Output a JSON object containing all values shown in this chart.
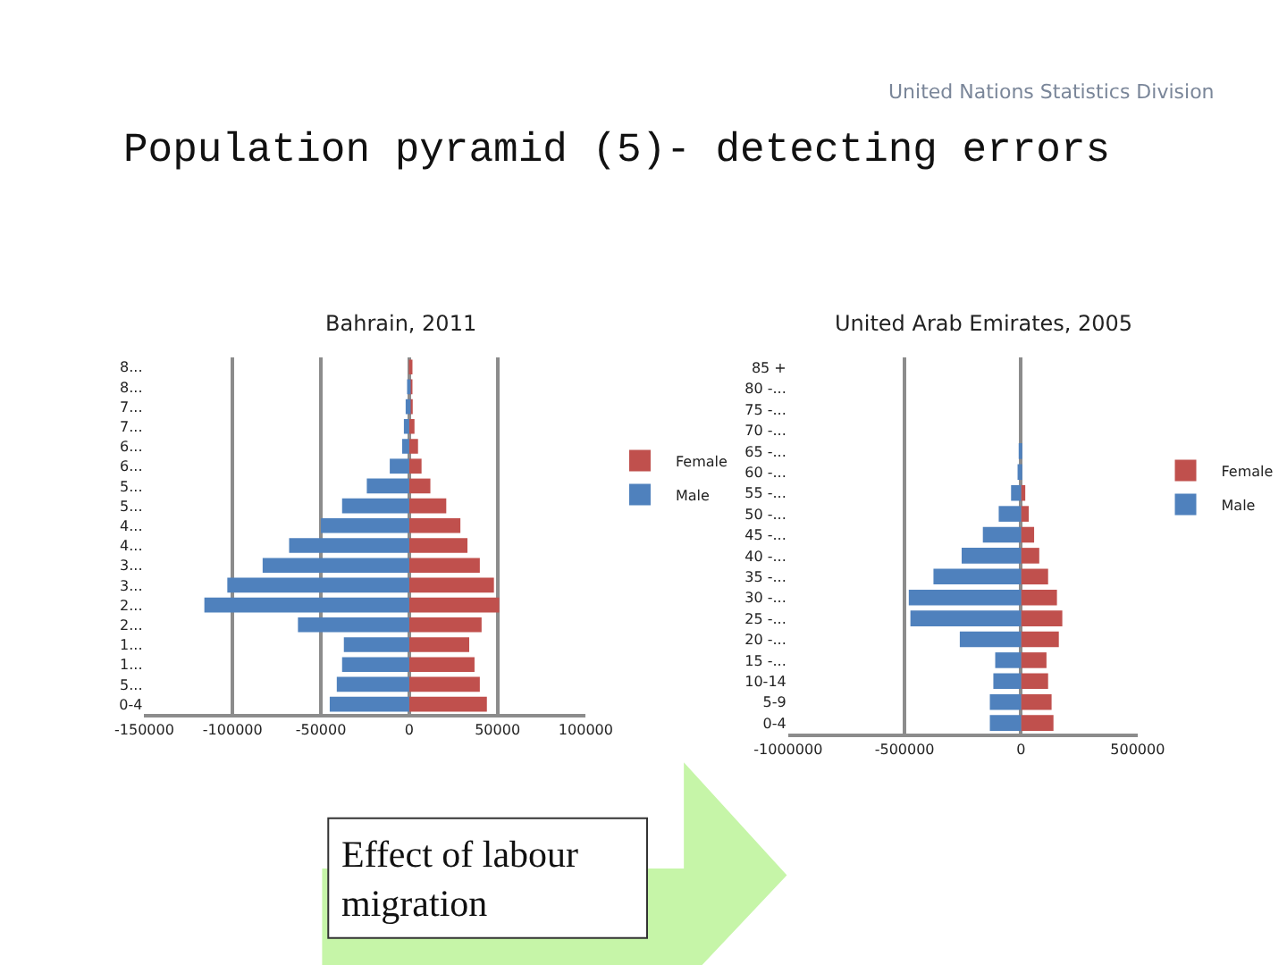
{
  "chart_data": [
    {
      "type": "bar",
      "orientation": "horizontal",
      "title": "Bahrain, 2011",
      "annotations": [
        "Population pyramid (5)- detecting errors",
        "United Nations Statistics Division",
        "Effect of labour\nmigration"
      ],
      "categories": [
        "8...",
        "8...",
        "7...",
        "7...",
        "6...",
        "6...",
        "5...",
        "5...",
        "4...",
        "4...",
        "3...",
        "3...",
        "2...",
        "2...",
        "1...",
        "1...",
        "5...",
        "0-4"
      ],
      "series": [
        {
          "name": "Female",
          "color": "#c0504d",
          "values": [
            1000,
            1000,
            2000,
            3000,
            5000,
            7000,
            12000,
            21000,
            29000,
            33000,
            40000,
            48000,
            51000,
            41000,
            34000,
            37000,
            40000,
            44000
          ]
        },
        {
          "name": "Male",
          "color": "#4f81bd",
          "values": [
            0,
            -1000,
            -2000,
            -3000,
            -4000,
            -11000,
            -24000,
            -38000,
            -50000,
            -68000,
            -83000,
            -103000,
            -116000,
            -63000,
            -37000,
            -38000,
            -41000,
            -45000
          ]
        }
      ],
      "xlim": [
        -150000,
        100000
      ],
      "xticks": [
        -150000,
        -100000,
        -50000,
        0,
        50000,
        100000
      ],
      "grid": "x",
      "legend": "right",
      "stacked": true
    },
    {
      "type": "bar",
      "orientation": "horizontal",
      "title": "United Arab Emirates, 2005",
      "categories": [
        "85 +",
        "80 -...",
        "75 -...",
        "70 -...",
        "65 -...",
        "60 -...",
        "55 -...",
        "50 -...",
        "45 -...",
        "40 -...",
        "35 -...",
        "30 -...",
        "25 -...",
        "20 -...",
        "15 -...",
        "10-14",
        "5-9",
        "0-4"
      ],
      "series": [
        {
          "name": "Female",
          "color": "#c0504d",
          "values": [
            0,
            0,
            0,
            0,
            null,
            null,
            18000,
            33000,
            56000,
            78000,
            116000,
            154000,
            177000,
            162000,
            109000,
            116000,
            131000,
            139000
          ]
        },
        {
          "name": "Male",
          "color": "#4f81bd",
          "values": [
            0,
            0,
            0,
            0,
            -5000,
            -15000,
            -43000,
            -96000,
            -164000,
            -255000,
            -376000,
            -482000,
            -475000,
            -263000,
            -111000,
            -119000,
            -134000,
            -134000
          ]
        }
      ],
      "xlim": [
        -1000000,
        500000
      ],
      "xticks": [
        -1000000,
        -500000,
        0,
        500000
      ],
      "grid": "x",
      "legend": "right",
      "stacked": true
    }
  ]
}
